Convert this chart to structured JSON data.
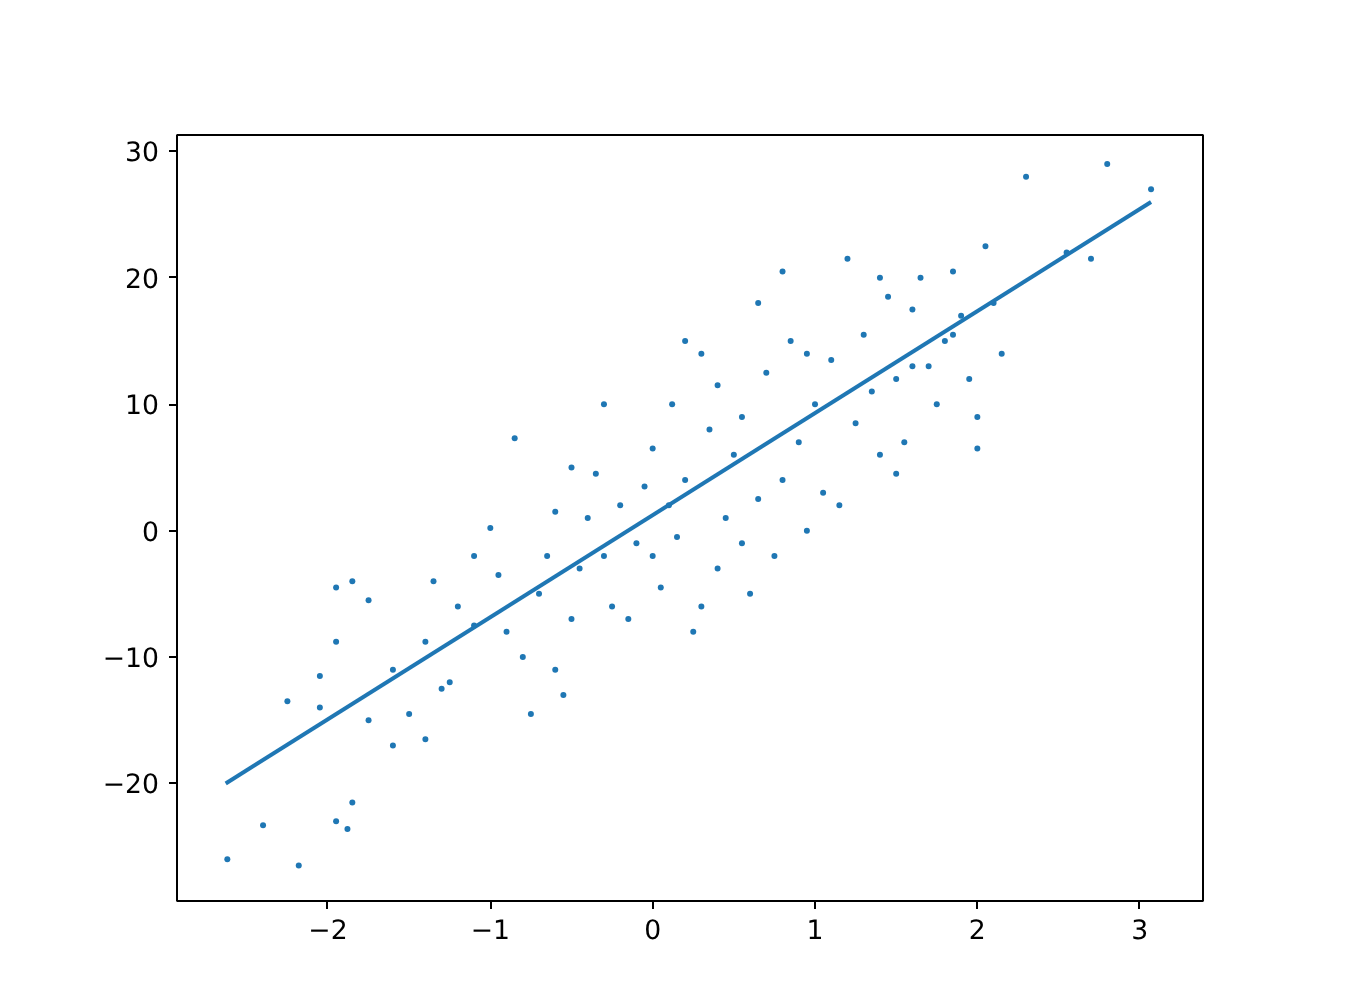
{
  "chart_data": {
    "type": "scatter",
    "xlim": [
      -2.93,
      3.39
    ],
    "ylim": [
      -29.3,
      31.3
    ],
    "xticks": [
      -2,
      -1,
      0,
      1,
      2,
      3
    ],
    "yticks": [
      -20,
      -10,
      0,
      10,
      20,
      30
    ],
    "grid": false,
    "marker": "circle",
    "series": [
      {
        "color": "#1f77b4",
        "x": [
          -2.62,
          -2.4,
          -2.18,
          -1.95,
          -1.85,
          -1.88,
          -2.25,
          -2.05,
          -1.95,
          -1.85,
          -1.75,
          -1.95,
          -1.6,
          -1.5,
          -1.4,
          -1.35,
          -1.25,
          -1.4,
          -1.3,
          -1.1,
          -1.0,
          -0.95,
          -0.85,
          -1.1,
          -0.8,
          -0.75,
          -0.6,
          -0.5,
          -0.45,
          -0.4,
          -0.35,
          -0.3,
          -0.25,
          -0.5,
          -0.6,
          -0.7,
          -0.2,
          -0.15,
          -0.1,
          -0.05,
          0,
          0.05,
          0.1,
          0.12,
          0.15,
          0.2,
          0.25,
          0.3,
          0.35,
          0.4,
          0.45,
          0.5,
          0.55,
          0.6,
          0.65,
          0.7,
          0.75,
          0.8,
          0.85,
          0.9,
          0.95,
          1.0,
          1.05,
          1.1,
          1.2,
          1.25,
          1.3,
          1.35,
          1.4,
          1.45,
          1.5,
          1.55,
          1.6,
          1.65,
          1.7,
          1.75,
          1.8,
          1.85,
          1.9,
          1.95,
          2.0,
          2.05,
          2.1,
          2.15,
          2.0,
          2.3,
          2.55,
          2.7,
          2.8,
          3.07,
          1.85,
          1.6,
          1.4,
          0.65,
          -0.3,
          0.2,
          0.8,
          -1.6,
          -1.2,
          -0.9,
          -0.65,
          0.0,
          0.3,
          0.55,
          1.15,
          -2.05,
          -1.75,
          0.4,
          0.95,
          1.5,
          -0.55
        ],
        "values": [
          -26,
          -23.3,
          -26.5,
          -23,
          -21.5,
          -23.6,
          -13.5,
          -11.5,
          -4.5,
          -4,
          -5.5,
          -8.8,
          -17,
          -14.5,
          -8.8,
          -4,
          -12,
          -16.5,
          -12.5,
          -2,
          0.2,
          -3.5,
          7.3,
          -7.5,
          -10,
          -14.5,
          -11,
          -7,
          -3,
          1,
          4.5,
          -2,
          -6,
          5,
          1.5,
          -5,
          2,
          -7,
          -1,
          3.5,
          6.5,
          -4.5,
          2,
          10,
          -0.5,
          4,
          -8,
          14,
          8,
          -3,
          1,
          6,
          9,
          -5,
          2.5,
          12.5,
          -2,
          4,
          15,
          7,
          0,
          10,
          3,
          13.5,
          21.5,
          8.5,
          15.5,
          11,
          6,
          18.5,
          12,
          7,
          17.5,
          20,
          13,
          10,
          15,
          20.5,
          17,
          12,
          9,
          22.5,
          18,
          14,
          6.5,
          28,
          22,
          21.5,
          29,
          27,
          15.5,
          13,
          20,
          18,
          10,
          15,
          20.5,
          -11,
          -6,
          -8,
          -2,
          -2,
          -6,
          -1,
          2,
          -14,
          -15,
          11.5,
          14,
          4.5,
          -13
        ]
      },
      {
        "type": "line",
        "color": "#1f77b4",
        "marker": "none",
        "x": [
          -2.63,
          3.07
        ],
        "values": [
          -20,
          26
        ]
      }
    ]
  }
}
